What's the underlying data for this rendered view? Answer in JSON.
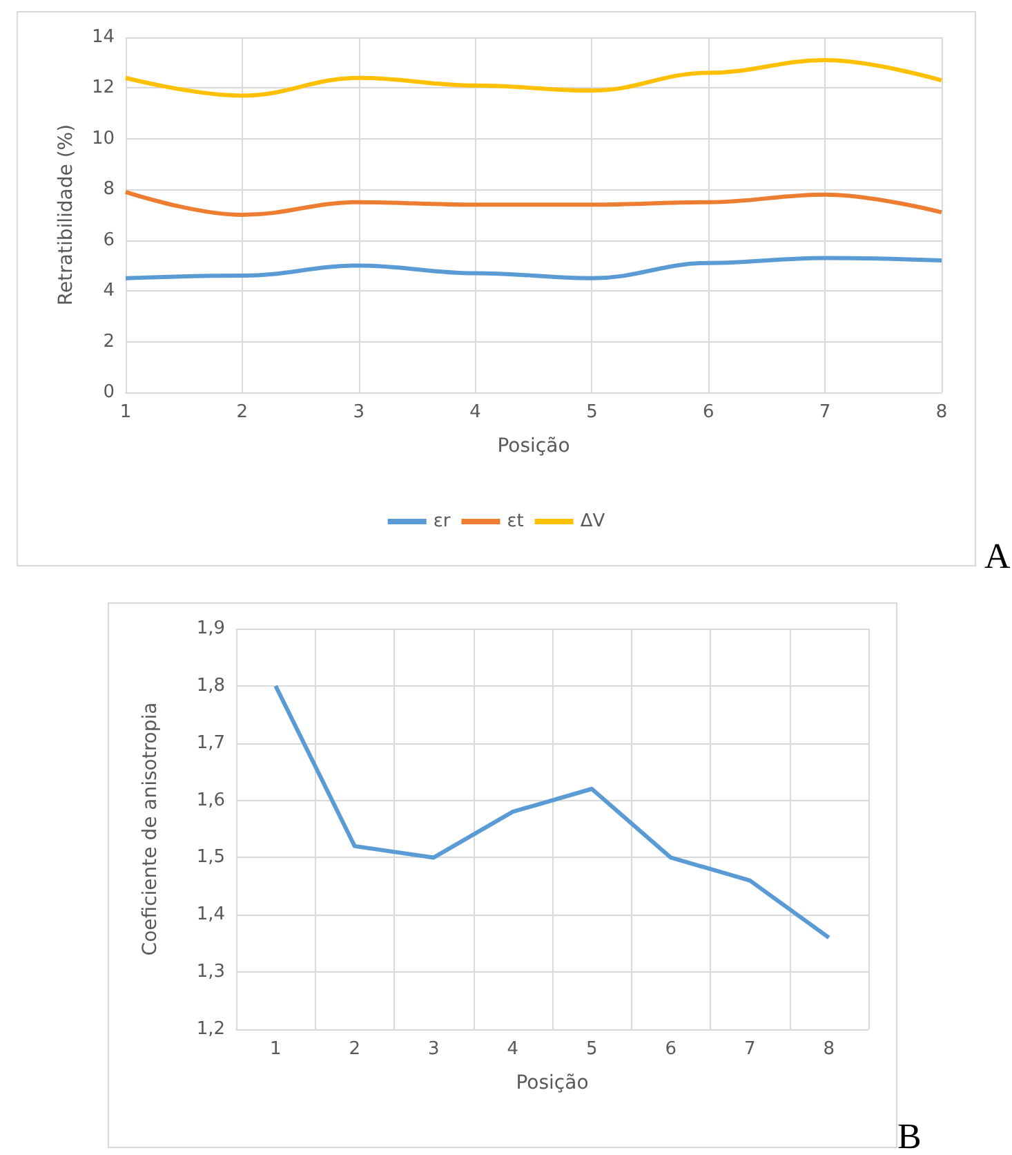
{
  "chart_data": [
    {
      "type": "line",
      "ylabel": "Retratibilidade (%)",
      "xlabel": "Posição",
      "categories": [
        "1",
        "2",
        "3",
        "4",
        "5",
        "6",
        "7",
        "8"
      ],
      "series": [
        {
          "name": "εr",
          "color": "#5b9bd5",
          "values": [
            4.5,
            4.6,
            5.0,
            4.7,
            4.5,
            5.1,
            5.3,
            5.2
          ]
        },
        {
          "name": "εt",
          "color": "#ed7d31",
          "values": [
            7.9,
            7.0,
            7.5,
            7.4,
            7.4,
            7.5,
            7.8,
            7.1
          ]
        },
        {
          "name": "ΔV",
          "color": "#ffc000",
          "values": [
            12.4,
            11.7,
            12.4,
            12.1,
            11.9,
            12.6,
            13.1,
            12.3
          ]
        }
      ],
      "ylim": [
        0,
        14
      ],
      "yticks": [
        0,
        2,
        4,
        6,
        8,
        10,
        12,
        14
      ],
      "grid": true,
      "legend": "bottom",
      "annotations": [
        "A"
      ]
    },
    {
      "type": "line",
      "ylabel": "Coeficiente de anisotropia",
      "xlabel": "Posição",
      "categories": [
        "1",
        "2",
        "3",
        "4",
        "5",
        "6",
        "7",
        "8"
      ],
      "series": [
        {
          "color": "#5b9bd5",
          "values": [
            1.8,
            1.52,
            1.5,
            1.58,
            1.62,
            1.5,
            1.46,
            1.36
          ]
        }
      ],
      "ylim": [
        1.2,
        1.9
      ],
      "yticks": [
        {
          "value": 1.2,
          "label": "1,2"
        },
        {
          "value": 1.3,
          "label": "1,3"
        },
        {
          "value": 1.4,
          "label": "1,4"
        },
        {
          "value": 1.5,
          "label": "1,5"
        },
        {
          "value": 1.6,
          "label": "1,6"
        },
        {
          "value": 1.7,
          "label": "1,7"
        },
        {
          "value": 1.8,
          "label": "1,8"
        },
        {
          "value": 1.9,
          "label": "1,9"
        }
      ],
      "grid": true,
      "annotations": [
        "B"
      ]
    }
  ]
}
